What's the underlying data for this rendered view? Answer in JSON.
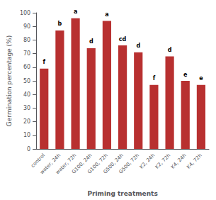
{
  "chart_data": {
    "type": "bar",
    "categories": [
      "control",
      "water, 24h",
      "water, 72h",
      "G100, 24h",
      "G100, 72h",
      "G500, 24h",
      "G500, 72h",
      "K2, 24h",
      "K2, 72h",
      "K4, 24h",
      "K4, 72h"
    ],
    "values": [
      59,
      87,
      96,
      74,
      94,
      76,
      71,
      47,
      68,
      50,
      47
    ],
    "annotations": [
      "f",
      "b",
      "a",
      "d",
      "a",
      "cd",
      "d",
      "f",
      "d",
      "e",
      "e"
    ],
    "color": "#b83030",
    "xlabel": "Priming treatments",
    "ylabel": "Germination percentage (%)",
    "ylim": [
      0,
      100
    ],
    "yticks": [
      0,
      10,
      20,
      30,
      40,
      50,
      60,
      70,
      80,
      90,
      100
    ],
    "grid": false
  }
}
